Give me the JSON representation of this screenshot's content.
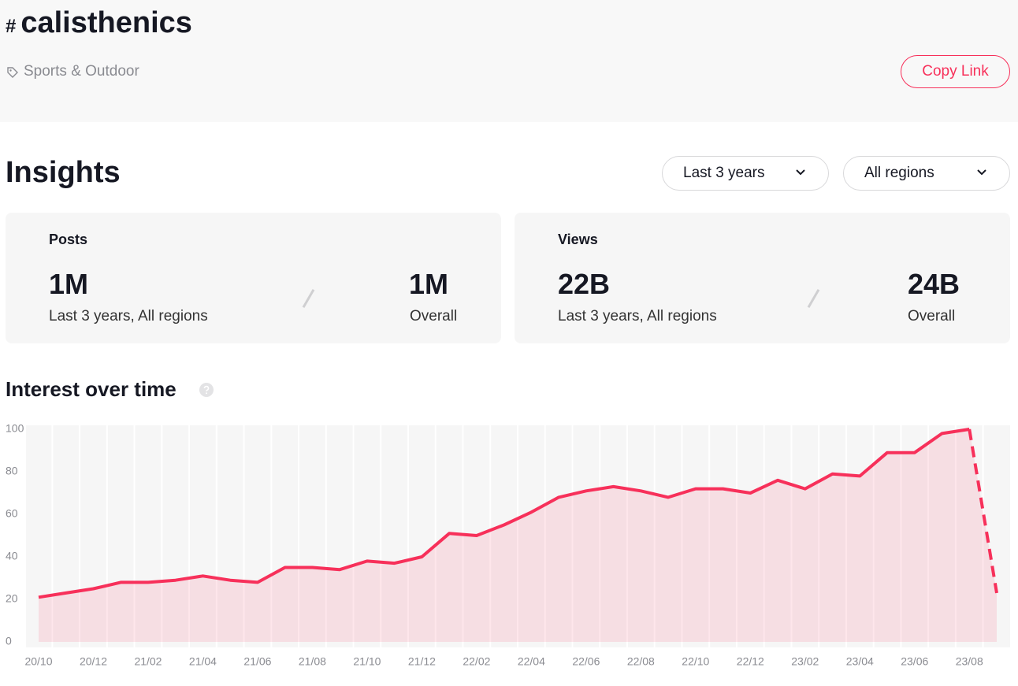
{
  "header": {
    "prefix": "#",
    "title": "calisthenics",
    "category": "Sports & Outdoor",
    "button": "Copy Link"
  },
  "insights": {
    "title": "Insights",
    "filters": [
      "Last 3 years",
      "All regions"
    ],
    "cards": [
      {
        "label": "Posts",
        "recent_value": "1M",
        "recent_label": "Last 3 years, All regions",
        "overall_value": "1M",
        "overall_label": "Overall"
      },
      {
        "label": "Views",
        "recent_value": "22B",
        "recent_label": "Last 3 years, All regions",
        "overall_value": "24B",
        "overall_label": "Overall"
      }
    ]
  },
  "chart_data": {
    "type": "line",
    "title": "Interest over time",
    "categories": [
      "20/10",
      null,
      "20/12",
      null,
      "21/02",
      null,
      "21/04",
      null,
      "21/06",
      null,
      "21/08",
      null,
      "21/10",
      null,
      "21/12",
      null,
      "22/02",
      null,
      "22/04",
      null,
      "22/06",
      null,
      "22/08",
      null,
      "22/10",
      null,
      "22/12",
      null,
      "23/02",
      null,
      "23/04",
      null,
      "23/06",
      null,
      "23/08",
      null
    ],
    "series": [
      {
        "name": "Interest",
        "color": "#f7305a",
        "values": [
          21,
          23,
          25,
          28,
          28,
          29,
          31,
          29,
          28,
          35,
          35,
          34,
          38,
          37,
          40,
          51,
          50,
          55,
          61,
          68,
          71,
          73,
          71,
          68,
          72,
          72,
          70,
          76,
          72,
          79,
          78,
          89,
          89,
          98,
          100,
          23
        ]
      }
    ],
    "ylim": [
      0,
      100
    ],
    "yticks": [
      0,
      20,
      40,
      60,
      80,
      100
    ],
    "grid": true
  }
}
